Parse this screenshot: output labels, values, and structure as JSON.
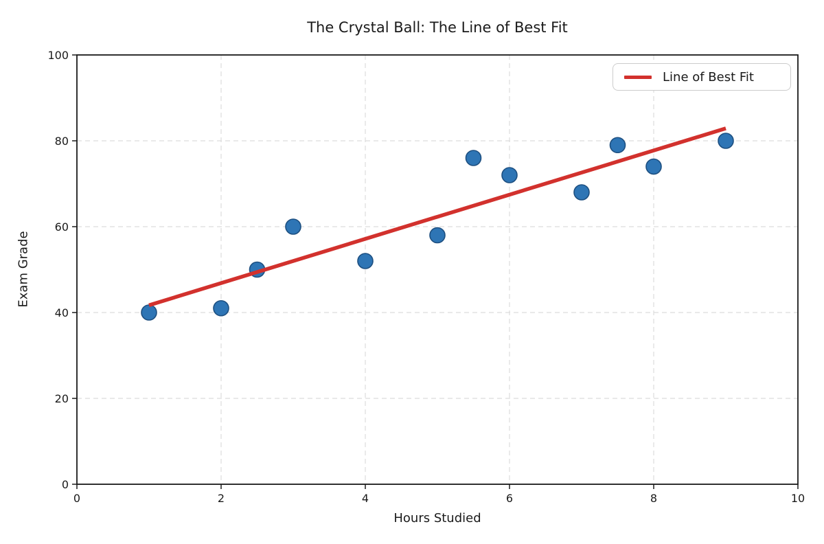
{
  "chart_data": {
    "type": "scatter",
    "title": "The Crystal Ball: The Line of Best Fit",
    "xlabel": "Hours Studied",
    "ylabel": "Exam Grade",
    "xlim": [
      0,
      10
    ],
    "ylim": [
      0,
      100
    ],
    "xticks": [
      0,
      2,
      4,
      6,
      8,
      10
    ],
    "yticks": [
      0,
      20,
      40,
      60,
      80,
      100
    ],
    "grid": true,
    "legend": {
      "position": "upper right",
      "entries": [
        {
          "label": "Line of Best Fit",
          "type": "line",
          "color": "#d2312d"
        }
      ]
    },
    "series": [
      {
        "name": "exam-scores-scatter",
        "type": "scatter",
        "marker": "circle",
        "color": "#2e75b5",
        "edge_color": "#1d4f80",
        "x": [
          1,
          2,
          2.5,
          3,
          4,
          5,
          5.5,
          6,
          7,
          7.5,
          8,
          9
        ],
        "y": [
          40,
          41,
          50,
          60,
          52,
          58,
          76,
          72,
          68,
          79,
          74,
          80
        ]
      },
      {
        "name": "Line of Best Fit",
        "type": "line",
        "color": "#d2312d",
        "slope": 5.15,
        "intercept": 36.6,
        "x": [
          1,
          9
        ],
        "y": [
          41.7,
          82.9
        ]
      }
    ],
    "colors": {
      "scatter_fill": "#2e75b5",
      "scatter_edge": "#1d4f80",
      "fit_line": "#d2312d",
      "grid": "#dcdcdc",
      "axis": "#1a1a1a",
      "text": "#1a1a1a"
    }
  }
}
